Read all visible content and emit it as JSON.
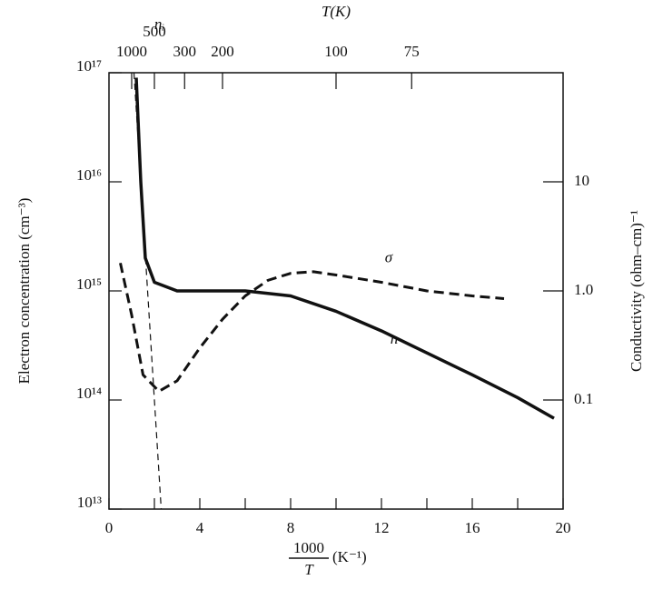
{
  "chart_data": {
    "type": "line",
    "top_axis_label": "T(K)",
    "y_label": "Electron concentration (cm⁻³)",
    "y2_label": "Conductivity (ohm–cm)⁻¹",
    "x_label": {
      "numerator": "1000",
      "denominator": "T",
      "unit": "(K⁻¹)"
    },
    "xlim": [
      0,
      20
    ],
    "xticks": [
      0,
      4,
      8,
      12,
      16,
      20
    ],
    "xminorticks": [
      2,
      6,
      10,
      14,
      18
    ],
    "x2ticks": [
      {
        "value": 1,
        "label": "1000"
      },
      {
        "value": 2,
        "label": "500"
      },
      {
        "value": 3.33,
        "label": "300"
      },
      {
        "value": 5,
        "label": "200"
      },
      {
        "value": 10,
        "label": "100"
      },
      {
        "value": 13.33,
        "label": "75"
      }
    ],
    "ylog": true,
    "ylim": [
      10000000000000,
      100000000000000000
    ],
    "yticks": [
      {
        "value": 10000000000000,
        "label": "10¹³"
      },
      {
        "value": 100000000000000,
        "label": "10¹⁴"
      },
      {
        "value": 1000000000000000,
        "label": "10¹⁵"
      },
      {
        "value": 10000000000000000,
        "label": "10¹⁶"
      },
      {
        "value": 100000000000000000,
        "label": "10¹⁷"
      }
    ],
    "y2log": true,
    "y2lim": [
      0.01,
      100
    ],
    "y2ticks": [
      0.1,
      {
        "value": 1,
        "label": "1.0"
      },
      10
    ],
    "series": [
      {
        "name": "n",
        "color": "#111111",
        "style": "solid",
        "x": [
          1.2,
          1.4,
          1.6,
          2,
          3,
          6,
          8,
          10,
          12,
          14,
          16,
          18,
          19.6
        ],
        "values": [
          90000000000000000,
          10000000000000000,
          2000000000000000,
          1200000000000000,
          1000000000000000,
          1000000000000000,
          900000000000000,
          650000000000000,
          430000000000000,
          270000000000000,
          170000000000000,
          105000000000000,
          68000000000000
        ]
      },
      {
        "name": "nᵢ",
        "color": "#111111",
        "style": "thin-dash",
        "x": [
          1.1,
          1.7,
          2.3
        ],
        "values": [
          100000000000000000,
          1000000000000000,
          10000000000000
        ]
      },
      {
        "name": "σ",
        "color": "#111111",
        "style": "dash",
        "axis": "y2",
        "x": [
          0.5,
          1,
          1.5,
          2.2,
          3,
          4,
          5,
          6,
          7,
          8,
          9,
          10,
          12,
          14,
          16,
          17.4
        ],
        "values": [
          1.8,
          0.6,
          0.17,
          0.12,
          0.15,
          0.3,
          0.55,
          0.9,
          1.25,
          1.45,
          1.5,
          1.4,
          1.2,
          1.0,
          0.9,
          0.85
        ]
      }
    ]
  }
}
